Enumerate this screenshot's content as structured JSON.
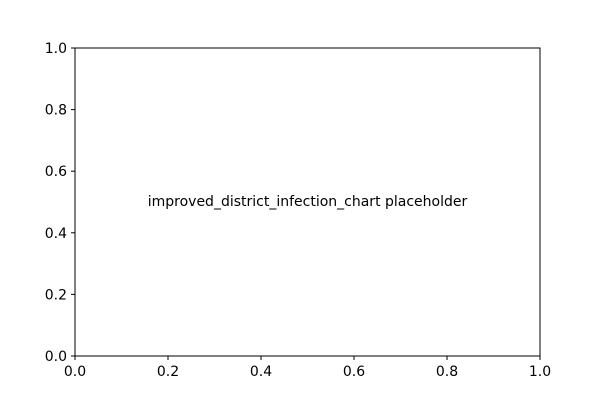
{
  "chart_data": {
    "type": "line",
    "title": "",
    "xlabel": "",
    "ylabel": "",
    "xlim": [
      0,
      1
    ],
    "ylim": [
      0,
      1
    ],
    "x_ticks": [
      "0.0",
      "0.2",
      "0.4",
      "0.6",
      "0.8",
      "1.0"
    ],
    "y_ticks": [
      "0.0",
      "0.2",
      "0.4",
      "0.6",
      "0.8",
      "1.0"
    ],
    "grid": false,
    "series": [],
    "annotation": {
      "text": "improved_district_infection_chart placeholder",
      "x": 0.5,
      "y": 0.5
    }
  },
  "colors": {
    "axes": "#000000",
    "background": "#ffffff"
  }
}
